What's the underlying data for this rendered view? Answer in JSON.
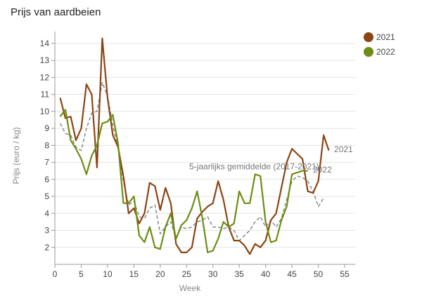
{
  "chart_data": {
    "type": "line",
    "title": "Prijs van aardbeien",
    "xlabel": "Week",
    "ylabel": "Prijs (euro / kg)",
    "xlim": [
      0,
      57
    ],
    "ylim": [
      1,
      14.7
    ],
    "xticks": [
      0,
      5,
      10,
      15,
      20,
      25,
      30,
      35,
      40,
      45,
      50,
      55
    ],
    "yticks": [
      2,
      3,
      4,
      5,
      6,
      7,
      8,
      9,
      10,
      11,
      12,
      13,
      14
    ],
    "grid": "horizontal",
    "legend_position": "top-right",
    "series": [
      {
        "name": "2021",
        "color": "#8b4513",
        "x": [
          1,
          2,
          3,
          4,
          5,
          6,
          7,
          8,
          9,
          10,
          11,
          12,
          13,
          14,
          15,
          16,
          17,
          18,
          19,
          20,
          21,
          22,
          23,
          24,
          25,
          26,
          27,
          28,
          29,
          30,
          31,
          32,
          33,
          34,
          35,
          36,
          37,
          38,
          39,
          40,
          41,
          42,
          43,
          44,
          45,
          46,
          47,
          48,
          49,
          50,
          51,
          52
        ],
        "values": [
          10.8,
          9.6,
          9.7,
          8.3,
          9.0,
          11.6,
          11.0,
          6.7,
          14.3,
          10.8,
          8.6,
          7.9,
          6.2,
          4.0,
          4.3,
          3.4,
          4.0,
          5.8,
          5.6,
          4.2,
          5.5,
          4.6,
          2.2,
          1.7,
          1.7,
          2.0,
          3.7,
          4.1,
          4.4,
          4.6,
          5.9,
          4.8,
          3.2,
          2.4,
          2.4,
          2.1,
          1.6,
          2.2,
          2.0,
          2.4,
          3.6,
          4.0,
          5.5,
          7.0,
          7.8,
          7.5,
          7.2,
          5.3,
          5.2,
          5.9,
          8.6,
          7.7
        ]
      },
      {
        "name": "2022",
        "color": "#6b8e13",
        "x": [
          1,
          2,
          3,
          4,
          5,
          6,
          7,
          8,
          9,
          10,
          11,
          12,
          13,
          14,
          15,
          16,
          17,
          18,
          19,
          20,
          21,
          22,
          23,
          24,
          25,
          26,
          27,
          28,
          29,
          30,
          31,
          32,
          33,
          34,
          35,
          36,
          37,
          38,
          39,
          40,
          41,
          42,
          43,
          44,
          45,
          46,
          47,
          48
        ],
        "values": [
          9.7,
          10.1,
          8.3,
          7.8,
          7.2,
          6.3,
          7.4,
          8.0,
          9.3,
          9.4,
          9.8,
          8.1,
          4.6,
          4.6,
          5.0,
          2.7,
          2.3,
          3.2,
          2.0,
          1.9,
          3.2,
          4.0,
          2.5,
          3.3,
          3.6,
          4.3,
          5.3,
          3.7,
          1.7,
          1.8,
          2.5,
          3.5,
          3.2,
          3.4,
          5.3,
          4.6,
          4.6,
          6.3,
          6.2,
          3.5,
          2.3,
          2.4,
          3.6,
          4.4,
          6.3,
          6.4,
          6.5,
          6.5
        ]
      },
      {
        "name": "5-jaarlijks gemiddelde (2017-2021)",
        "color": "#888888",
        "dashed": true,
        "x": [
          1,
          2,
          3,
          4,
          5,
          6,
          7,
          8,
          9,
          10,
          11,
          12,
          13,
          14,
          15,
          16,
          17,
          18,
          19,
          20,
          21,
          22,
          23,
          24,
          25,
          26,
          27,
          28,
          29,
          30,
          31,
          32,
          33,
          34,
          35,
          36,
          37,
          38,
          39,
          40,
          41,
          42,
          43,
          44,
          45,
          46,
          47,
          48,
          49,
          50,
          51
        ],
        "values": [
          9.3,
          8.7,
          8.6,
          7.9,
          7.7,
          9.0,
          9.9,
          10.0,
          11.7,
          10.9,
          9.2,
          7.8,
          5.9,
          4.5,
          4.7,
          3.8,
          3.7,
          4.3,
          4.5,
          2.8,
          3.2,
          3.5,
          2.5,
          3.2,
          3.1,
          3.2,
          3.5,
          3.6,
          3.8,
          3.2,
          3.2,
          3.1,
          3.2,
          3.0,
          2.4,
          2.7,
          3.0,
          3.5,
          3.8,
          3.2,
          3.6,
          3.2,
          3.7,
          4.8,
          5.9,
          6.2,
          6.1,
          5.9,
          5.3,
          4.4,
          4.9
        ]
      }
    ],
    "annotations": [
      {
        "text": "2021",
        "x": 53,
        "y": 7.6
      },
      {
        "text": "5-jaarlijks gemiddelde (2017-2021)",
        "x": 25.5,
        "y": 6.6
      },
      {
        "text": "2022",
        "x": 49,
        "y": 6.4
      }
    ]
  }
}
